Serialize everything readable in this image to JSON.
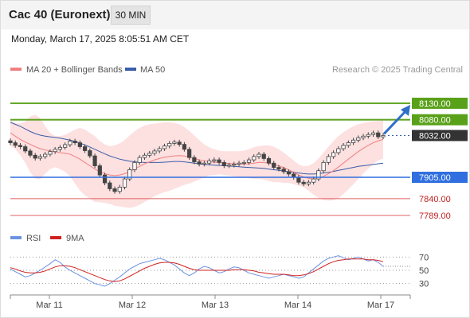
{
  "header": {
    "title": "Cac 40 (Euronext)",
    "timeframe": "30 MIN",
    "datetime": "Monday, March 17, 2025 8:05:51 AM CET"
  },
  "legend": {
    "ma20_label": "MA 20 + Bollinger Bands",
    "ma50_label": "MA 50",
    "credit": "Research © 2025 Trading Central",
    "rsi_label": "RSI",
    "rsi_ma_label": "9MA"
  },
  "colors": {
    "ma20": "#f08080",
    "bollinger_fill": "#fde0e0",
    "ma50": "#3a5ea8",
    "candle": "#444444",
    "resistance": "#5aa11a",
    "support": "#2f6fdf",
    "support_weak": "#e06060",
    "current": "#333333",
    "arrow": "#2f6fc8",
    "rsi": "#6c93e0",
    "rsi_ma": "#d02020"
  },
  "chart_data": [
    {
      "type": "candlestick",
      "title": "Cac 40 (Euronext)",
      "interval": "30 MIN",
      "x_ticks": [
        "Mar 11",
        "Mar 12",
        "Mar 13",
        "Mar 14",
        "Mar 17"
      ],
      "ylim": [
        7760,
        8195
      ],
      "close_series": [
        8010,
        8002,
        7998,
        7985,
        7972,
        7963,
        7968,
        7975,
        7983,
        7990,
        7996,
        8004,
        8015,
        8010,
        7998,
        7986,
        7970,
        7940,
        7912,
        7888,
        7870,
        7862,
        7875,
        7900,
        7928,
        7950,
        7965,
        7972,
        7978,
        7985,
        7992,
        8000,
        8008,
        8012,
        8005,
        7990,
        7965,
        7952,
        7945,
        7948,
        7955,
        7958,
        7950,
        7940,
        7942,
        7945,
        7948,
        7950,
        7958,
        7968,
        7975,
        7962,
        7948,
        7935,
        7930,
        7922,
        7915,
        7905,
        7890,
        7885,
        7890,
        7900,
        7925,
        7950,
        7968,
        7980,
        7992,
        8002,
        8010,
        8018,
        8025,
        8030,
        8035,
        8040,
        8028,
        8032
      ],
      "ma20": [
        8040,
        8030,
        8020,
        8012,
        8005,
        7998,
        7992,
        7988,
        7985,
        7983,
        7980,
        7978,
        7975,
        7968,
        7960,
        7950,
        7940,
        7930,
        7922,
        7916,
        7912,
        7910,
        7912,
        7916,
        7922,
        7930,
        7938,
        7946,
        7952,
        7958,
        7962,
        7966,
        7968,
        7970,
        7971,
        7970,
        7966,
        7962,
        7958,
        7955,
        7953,
        7951,
        7950,
        7948,
        7947,
        7946,
        7945,
        7945,
        7946,
        7948,
        7950,
        7950,
        7948,
        7944,
        7940,
        7934,
        7928,
        7920,
        7912,
        7906,
        7902,
        7900,
        7902,
        7908,
        7916,
        7925,
        7936,
        7948,
        7960,
        7972,
        7983,
        7993,
        8002,
        8010,
        8016,
        8020
      ],
      "bb_upper": [
        8080,
        8070,
        8068,
        8075,
        8090,
        8095,
        8085,
        8060,
        8040,
        8030,
        8030,
        8034,
        8042,
        8050,
        8055,
        8050,
        8040,
        8030,
        8015,
        8005,
        8000,
        8002,
        8008,
        8018,
        8032,
        8045,
        8055,
        8062,
        8066,
        8068,
        8070,
        8072,
        8072,
        8070,
        8066,
        8058,
        8046,
        8032,
        8018,
        8005,
        7996,
        7990,
        7986,
        7984,
        7984,
        7984,
        7984,
        7986,
        7990,
        7996,
        8000,
        8002,
        8002,
        7998,
        7990,
        7980,
        7968,
        7956,
        7944,
        7938,
        7940,
        7948,
        7962,
        7980,
        7998,
        8015,
        8030,
        8042,
        8052,
        8060,
        8066,
        8070,
        8073,
        8075,
        8076,
        8078
      ],
      "bb_lower": [
        8000,
        7990,
        7972,
        7949,
        7920,
        7901,
        7899,
        7916,
        7930,
        7936,
        7930,
        7922,
        7908,
        7886,
        7865,
        7850,
        7840,
        7830,
        7829,
        7827,
        7824,
        7818,
        7816,
        7814,
        7812,
        7815,
        7821,
        7830,
        7838,
        7848,
        7854,
        7860,
        7864,
        7870,
        7876,
        7882,
        7886,
        7892,
        7898,
        7905,
        7910,
        7912,
        7914,
        7912,
        7910,
        7908,
        7906,
        7904,
        7902,
        7900,
        7900,
        7898,
        7894,
        7890,
        7890,
        7888,
        7888,
        7884,
        7880,
        7874,
        7864,
        7852,
        7842,
        7836,
        7834,
        7835,
        7842,
        7854,
        7868,
        7884,
        7900,
        7916,
        7931,
        7945,
        7956,
        7962
      ],
      "ma50": [
        8072,
        8066,
        8060,
        8052,
        8044,
        8038,
        8033,
        8030,
        8028,
        8026,
        8024,
        8021,
        8018,
        8014,
        8009,
        8003,
        7997,
        7990,
        7983,
        7976,
        7970,
        7965,
        7960,
        7957,
        7954,
        7952,
        7951,
        7950,
        7950,
        7950,
        7950,
        7951,
        7952,
        7953,
        7953,
        7952,
        7950,
        7948,
        7946,
        7944,
        7943,
        7942,
        7941,
        7940,
        7939,
        7938,
        7937,
        7936,
        7935,
        7934,
        7933,
        7932,
        7930,
        7928,
        7926,
        7924,
        7922,
        7920,
        7918,
        7916,
        7915,
        7915,
        7916,
        7918,
        7920,
        7923,
        7926,
        7929,
        7932,
        7935,
        7938,
        7940,
        7942,
        7944,
        7946,
        7948
      ],
      "levels": [
        {
          "label": "8130.00",
          "value": 8130,
          "kind": "resistance"
        },
        {
          "label": "8080.00",
          "value": 8080,
          "kind": "resistance"
        },
        {
          "label": "8032.00",
          "value": 8032,
          "kind": "last"
        },
        {
          "label": "7905.00",
          "value": 7905,
          "kind": "pivot"
        },
        {
          "label": "7840.00",
          "value": 7840,
          "kind": "support"
        },
        {
          "label": "7789.00",
          "value": 7789,
          "kind": "support"
        }
      ]
    },
    {
      "type": "line",
      "title": "RSI",
      "ylim": [
        20,
        80
      ],
      "y_ticks": [
        70,
        50,
        30
      ],
      "series": [
        {
          "name": "RSI",
          "values": [
            52,
            48,
            44,
            40,
            42,
            46,
            50,
            55,
            60,
            66,
            62,
            55,
            50,
            46,
            42,
            38,
            34,
            30,
            28,
            26,
            30,
            35,
            40,
            46,
            52,
            56,
            60,
            62,
            64,
            66,
            68,
            66,
            62,
            58,
            52,
            46,
            42,
            46,
            52,
            56,
            54,
            50,
            46,
            48,
            52,
            55,
            54,
            50,
            46,
            44,
            42,
            40,
            38,
            40,
            42,
            44,
            42,
            40,
            38,
            40,
            46,
            52,
            58,
            64,
            68,
            70,
            72,
            69,
            66,
            68,
            70,
            67,
            64,
            66,
            62,
            56
          ]
        },
        {
          "name": "9MA",
          "values": [
            54,
            52,
            49,
            47,
            46,
            46,
            47,
            49,
            52,
            55,
            57,
            57,
            56,
            54,
            51,
            48,
            45,
            42,
            39,
            36,
            34,
            33,
            34,
            37,
            41,
            45,
            49,
            53,
            56,
            59,
            61,
            62,
            62,
            61,
            59,
            56,
            53,
            51,
            50,
            50,
            50,
            50,
            50,
            50,
            50,
            51,
            51,
            51,
            50,
            49,
            47,
            46,
            45,
            44,
            44,
            44,
            43,
            42,
            42,
            43,
            45,
            48,
            52,
            56,
            60,
            63,
            65,
            66,
            67,
            67,
            67,
            67,
            66,
            66,
            65,
            63
          ]
        }
      ]
    }
  ]
}
